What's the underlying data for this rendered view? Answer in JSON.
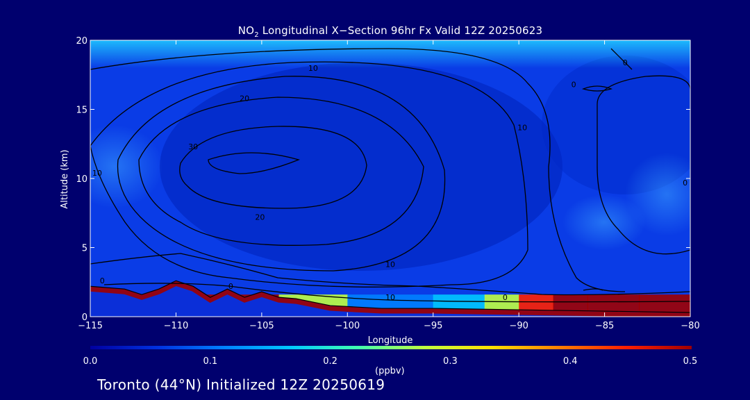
{
  "chart_data": {
    "type": "heatmap",
    "title": "NO",
    "title_sub": "2",
    "title_rest": " Longitudinal X−Section 96hr  Fx Valid 12Z 20250623",
    "xlabel": "Longitude",
    "ylabel": "Altitude (km)",
    "xlim": [
      -115,
      -80
    ],
    "ylim": [
      0,
      20
    ],
    "x_ticks": [
      -115,
      -110,
      -105,
      -100,
      -95,
      -90,
      -85,
      -80
    ],
    "x_tick_labels": [
      "−115",
      "−110",
      "−105",
      "−100",
      "−95",
      "−90",
      "−85",
      "−80"
    ],
    "y_ticks": [
      0,
      5,
      10,
      15,
      20
    ],
    "y_tick_labels": [
      "0",
      "5",
      "10",
      "15",
      "20"
    ],
    "colorbar": {
      "min": 0.0,
      "max": 0.5,
      "ticks": [
        0.0,
        0.1,
        0.2,
        0.3,
        0.4,
        0.5
      ],
      "tick_labels": [
        "0.0",
        "0.1",
        "0.2",
        "0.3",
        "0.4",
        "0.5"
      ],
      "units": "(ppbv)",
      "colors": [
        "#0000a0",
        "#0030e0",
        "#0080ff",
        "#00c8ff",
        "#40ffb0",
        "#c0ff40",
        "#ffe000",
        "#ff8000",
        "#ff2000",
        "#a00000"
      ]
    },
    "terrain_km": [
      [
        -115,
        2.2
      ],
      [
        -113,
        2.0
      ],
      [
        -112,
        1.6
      ],
      [
        -111,
        2.0
      ],
      [
        -110,
        2.6
      ],
      [
        -109,
        2.2
      ],
      [
        -108,
        1.4
      ],
      [
        -107,
        2.0
      ],
      [
        -106,
        1.4
      ],
      [
        -105,
        1.8
      ],
      [
        -104,
        1.4
      ],
      [
        -103,
        1.3
      ],
      [
        -101,
        0.8
      ],
      [
        -98,
        0.6
      ],
      [
        -95,
        0.6
      ],
      [
        -90,
        0.5
      ],
      [
        -85,
        0.4
      ],
      [
        -80,
        0.3
      ]
    ],
    "surface_no2_ppbv": [
      [
        -115,
        0.45
      ],
      [
        -112,
        0.5
      ],
      [
        -108,
        0.5
      ],
      [
        -104,
        0.45
      ],
      [
        -100,
        0.15
      ],
      [
        -95,
        0.1
      ],
      [
        -92,
        0.2
      ],
      [
        -90,
        0.4
      ],
      [
        -88,
        0.5
      ],
      [
        -86,
        0.45
      ],
      [
        -83,
        0.5
      ],
      [
        -80,
        0.5
      ]
    ],
    "contour_labels": [
      {
        "text": "10",
        "lon": -102,
        "alt": 17.8
      },
      {
        "text": "20",
        "lon": -106,
        "alt": 15.6
      },
      {
        "text": "30",
        "lon": -109,
        "alt": 12.1
      },
      {
        "text": "10",
        "lon": -114.6,
        "alt": 10.2
      },
      {
        "text": "20",
        "lon": -105.1,
        "alt": 7.0
      },
      {
        "text": "10",
        "lon": -89.8,
        "alt": 13.5
      },
      {
        "text": "0",
        "lon": -86.8,
        "alt": 16.6
      },
      {
        "text": "0",
        "lon": -83.8,
        "alt": 18.2
      },
      {
        "text": "0",
        "lon": -80.3,
        "alt": 9.5
      },
      {
        "text": "10",
        "lon": -97.5,
        "alt": 3.6
      },
      {
        "text": "10",
        "lon": -97.5,
        "alt": 1.2
      },
      {
        "text": "0",
        "lon": -90.8,
        "alt": 1.2
      },
      {
        "text": "0",
        "lon": -114.3,
        "alt": 2.4
      },
      {
        "text": "0",
        "lon": -106.8,
        "alt": 2.0
      }
    ]
  },
  "footer": "Toronto (44°N) Initialized 12Z 20250619"
}
